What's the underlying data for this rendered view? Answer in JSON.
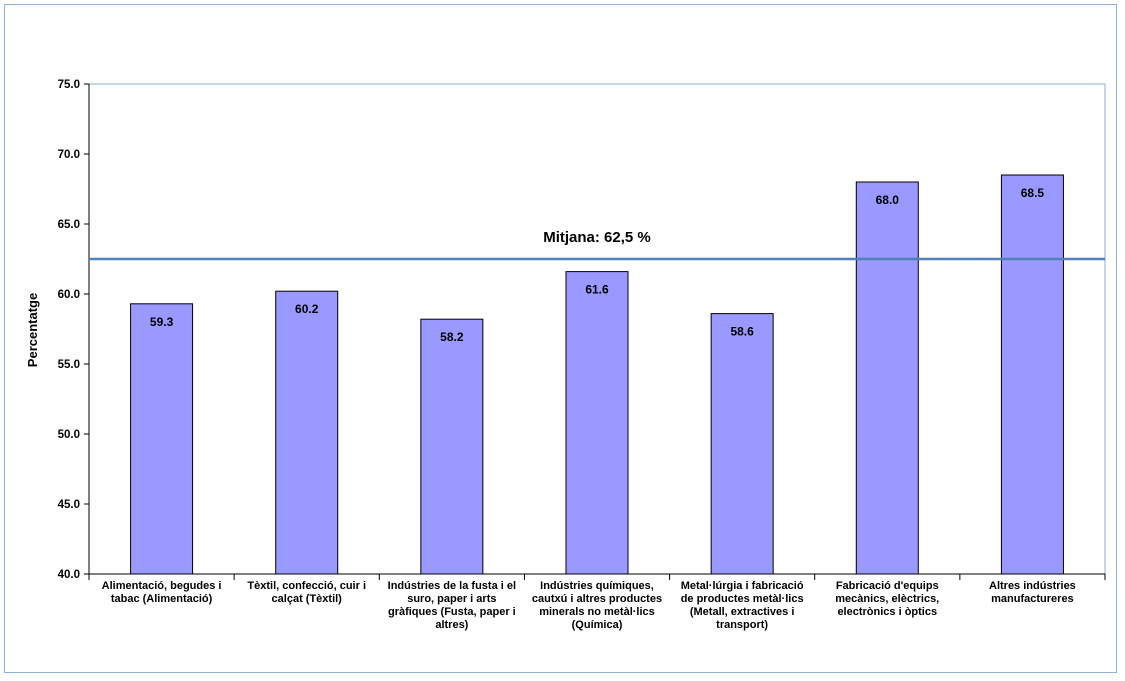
{
  "chart_data": {
    "type": "bar",
    "ylabel": "Percentatge",
    "ylim": [
      40.0,
      75.0
    ],
    "yticks": [
      "40.0",
      "45.0",
      "50.0",
      "55.0",
      "60.0",
      "65.0",
      "70.0",
      "75.0"
    ],
    "categories": [
      "Alimentació, begudes i\ntabac (Alimentació)",
      "Tèxtil, confecció, cuir i\ncalçat (Tèxtil)",
      "Indústries de la fusta i el\nsuro, paper i arts\ngràfiques (Fusta, paper i\naltres)",
      "Indústries químiques,\ncautxú i altres productes\nminerals no metàl·lics\n(Química)",
      "Metal·lúrgia i fabricació\nde productes metàl·lics\n(Metall, extractives i\ntransport)",
      "Fabricació d'equips\nmecànics, elèctrics,\nelectrònics i òptics",
      "Altres indústries\nmanufactureres"
    ],
    "values": [
      59.3,
      60.2,
      58.2,
      61.6,
      58.6,
      68.0,
      68.5
    ],
    "value_labels": [
      "59.3",
      "60.2",
      "58.2",
      "61.6",
      "58.6",
      "68.0",
      "68.5"
    ],
    "average": {
      "label": "Mitjana: 62,5 %",
      "value": 62.5
    },
    "colors": {
      "bar": "#9999ff",
      "bar_border": "#000000",
      "average_line": "#4f81bd",
      "plot_border": "#8eaedb"
    },
    "grid": false
  }
}
